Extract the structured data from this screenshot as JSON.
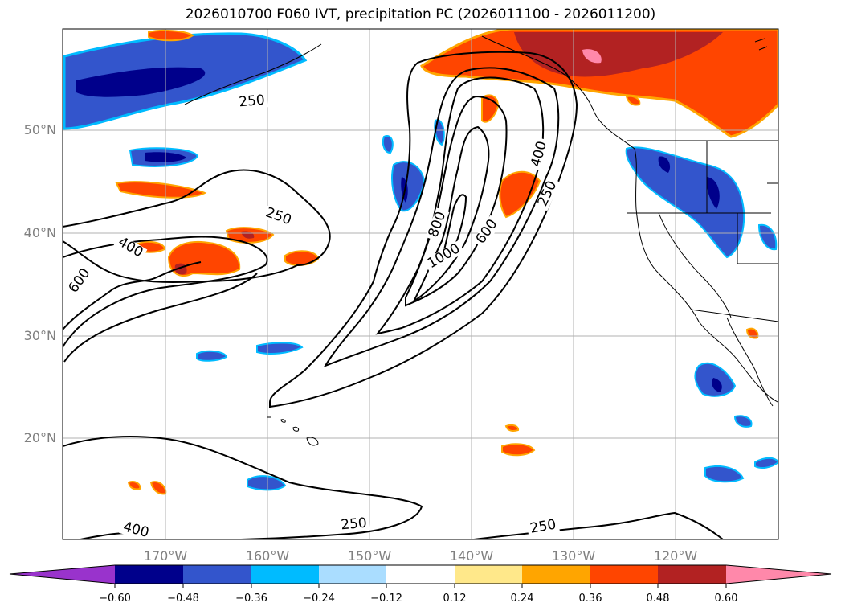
{
  "title": "2026010700 F060 IVT, precipitation PC (2026011100 - 2026011200)",
  "lat_labels": [
    "50°N",
    "40°N",
    "30°N",
    "20°N"
  ],
  "lon_labels": [
    "170°W",
    "160°W",
    "150°W",
    "140°W",
    "130°W",
    "120°W"
  ],
  "colorbar": {
    "colors": [
      "#9933cc",
      "#00008b",
      "#3355cc",
      "#00bbff",
      "#aaddff",
      "#ffffff",
      "#ffe88a",
      "#ffa500",
      "#ff4500",
      "#b22222",
      "#ff88aa"
    ],
    "tick_labels": [
      "−0.60",
      "−0.48",
      "−0.36",
      "−0.24",
      "−0.12",
      "0.12",
      "0.24",
      "0.36",
      "0.48",
      "0.60"
    ]
  },
  "contours": [
    {
      "label": "250",
      "lx": 314,
      "ly": 131,
      "rot": -5
    },
    {
      "label": "250",
      "lx": 345,
      "ly": 274,
      "rot": 20
    },
    {
      "label": "400",
      "lx": 160,
      "ly": 312,
      "rot": 30
    },
    {
      "label": "600",
      "lx": 103,
      "ly": 352,
      "rot": -55
    },
    {
      "label": "800",
      "lx": 549,
      "ly": 281,
      "rot": -70
    },
    {
      "label": "1000",
      "lx": 555,
      "ly": 323,
      "rot": -30
    },
    {
      "label": "600",
      "lx": 610,
      "ly": 291,
      "rot": -55
    },
    {
      "label": "400",
      "lx": 676,
      "ly": 193,
      "rot": -75
    },
    {
      "label": "250",
      "lx": 686,
      "ly": 243,
      "rot": -65
    },
    {
      "label": "400",
      "lx": 168,
      "ly": 664,
      "rot": 15
    },
    {
      "label": "250",
      "lx": 441,
      "ly": 657,
      "rot": -5
    },
    {
      "label": "250",
      "lx": 677,
      "ly": 660,
      "rot": -10
    }
  ]
}
